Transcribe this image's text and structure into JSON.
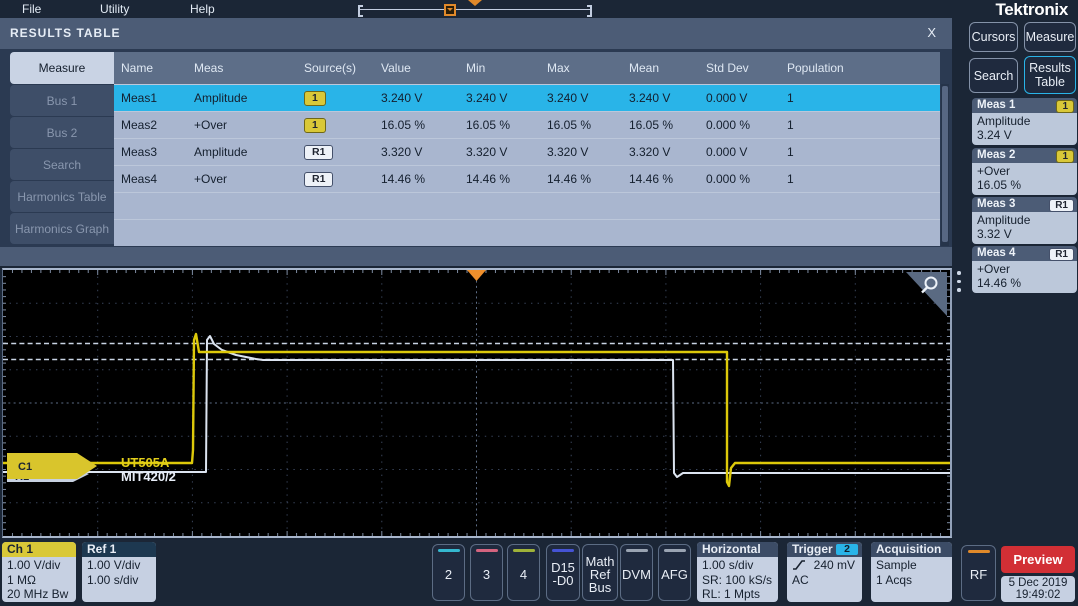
{
  "colors": {
    "accent_cyan": "#29b4e8",
    "ch1_yellow": "#d9c838",
    "trace_yellow": "#ddc90a",
    "ref_trace_white": "#dce4f0",
    "trigger_orange": "#ee8f2c",
    "preview_red": "#d22f35",
    "ch2_stripe": "#35b8cf",
    "ch3_stripe": "#d4647f",
    "ch4_stripe": "#9fb239",
    "digital_stripe": "#4553d4",
    "grey_stripe": "#9aa4b2",
    "rf_stripe": "#e0892a"
  },
  "menu": {
    "file": "File",
    "utility": "Utility",
    "help": "Help",
    "logo": "Tektronix"
  },
  "panel": {
    "title": "RESULTS TABLE",
    "close": "X",
    "tabs": [
      {
        "label": "Measure"
      },
      {
        "label": "Bus 1"
      },
      {
        "label": "Bus 2"
      },
      {
        "label": "Search"
      },
      {
        "label": "Harmonics Table"
      },
      {
        "label": "Harmonics Graph"
      }
    ],
    "columns": [
      "Name",
      "Meas",
      "Source(s)",
      "Value",
      "Min",
      "Max",
      "Mean",
      "Std Dev",
      "Population"
    ],
    "rows": [
      {
        "name": "Meas1",
        "meas": "Amplitude",
        "source": "1",
        "value": "3.240 V",
        "min": "3.240 V",
        "max": "3.240 V",
        "mean": "3.240 V",
        "stddev": "0.000 V",
        "population": "1"
      },
      {
        "name": "Meas2",
        "meas": "+Over",
        "source": "1",
        "value": "16.05 %",
        "min": "16.05 %",
        "max": "16.05 %",
        "mean": "16.05 %",
        "stddev": "0.000 %",
        "population": "1"
      },
      {
        "name": "Meas3",
        "meas": "Amplitude",
        "source": "R1",
        "value": "3.320 V",
        "min": "3.320 V",
        "max": "3.320 V",
        "mean": "3.320 V",
        "stddev": "0.000 V",
        "population": "1"
      },
      {
        "name": "Meas4",
        "meas": "+Over",
        "source": "R1",
        "value": "14.46 %",
        "min": "14.46 %",
        "max": "14.46 %",
        "mean": "14.46 %",
        "stddev": "0.000 %",
        "population": "1"
      }
    ]
  },
  "sidebar": {
    "cursors": "Cursors",
    "measure": "Measure",
    "search": "Search",
    "results_table": "Results Table",
    "cards": [
      {
        "title": "Meas 1",
        "source": "1",
        "meas": "Amplitude",
        "value": "3.24 V"
      },
      {
        "title": "Meas 2",
        "source": "1",
        "meas": "+Over",
        "value": "16.05 %"
      },
      {
        "title": "Meas 3",
        "source": "R1",
        "meas": "Amplitude",
        "value": "3.32 V"
      },
      {
        "title": "Meas 4",
        "source": "R1",
        "meas": "+Over",
        "value": "14.46 %"
      }
    ]
  },
  "scope": {
    "ch1_flag": "C1",
    "ref1_flag": "R1",
    "annotation_line1": "UT505A",
    "annotation_line2": "MIT420/2",
    "traces": {
      "ch1": "0,193 189,193 190,180 191,70 193,64 196,82 723,82 724,82 724,212 726,216 728,198 732,193 947,193",
      "ref1": "0,202 203,202 204,70 207,66 211,74 219,80 233,85 253,89 260,90 670,90 671,203 674,207 680,203 947,203"
    }
  },
  "bottom": {
    "ch1": {
      "title": "Ch 1",
      "line1": "1.00 V/div",
      "line2": "1 MΩ",
      "line3": "20 MHz Bw"
    },
    "ref1": {
      "title": "Ref 1",
      "line1": "1.00 V/div",
      "line2": "1.00 s/div"
    },
    "ch2": "2",
    "ch3": "3",
    "ch4": "4",
    "digital": "D15\n-D0",
    "math": "Math\nRef\nBus",
    "dvm": "DVM",
    "afg": "AFG",
    "horizontal": {
      "title": "Horizontal",
      "line1": "1.00 s/div",
      "line2": "SR: 100 kS/s",
      "line3": "RL: 1 Mpts"
    },
    "trigger": {
      "title": "Trigger",
      "source": "2",
      "value": "240 mV",
      "coupling": "AC"
    },
    "acquisition": {
      "title": "Acquisition",
      "line1": "Sample",
      "line2": "1 Acqs"
    },
    "rf": "RF",
    "preview": "Preview",
    "date": "5 Dec 2019",
    "time": "19:49:02"
  }
}
